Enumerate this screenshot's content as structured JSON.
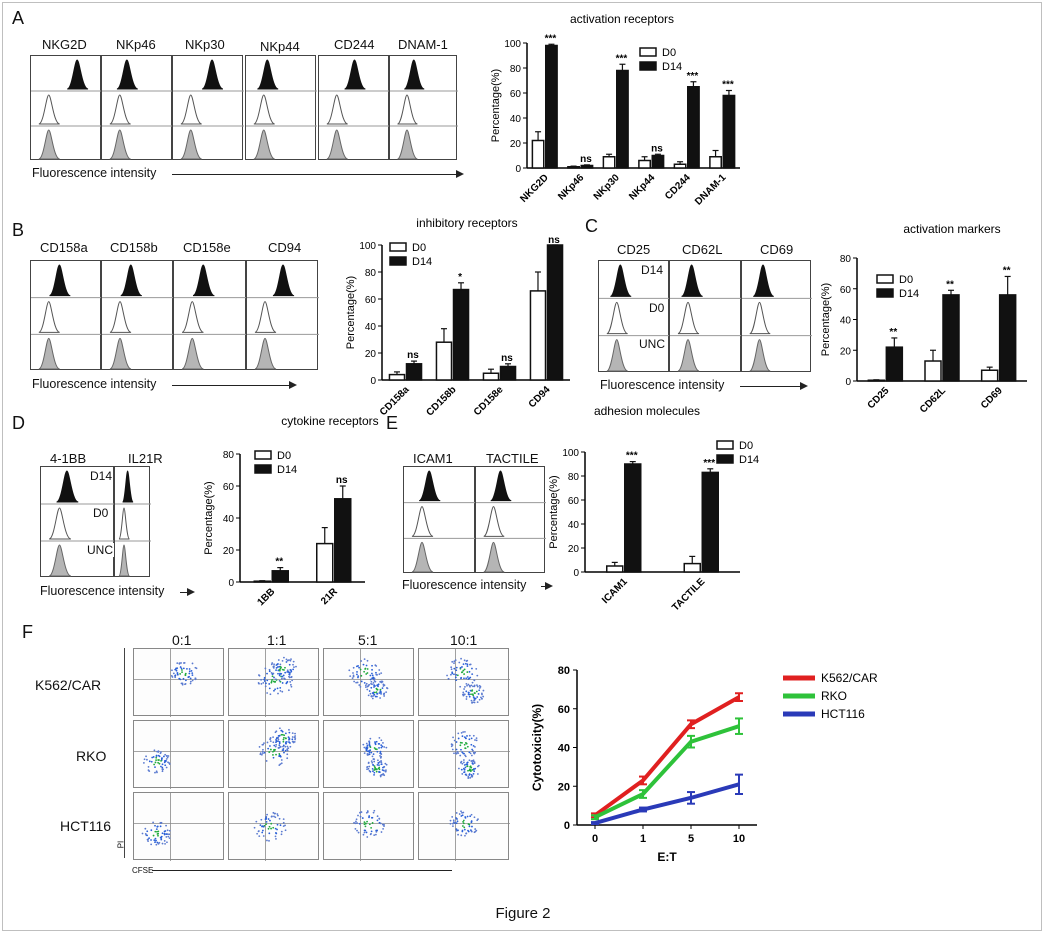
{
  "figure_caption": "Figure 2",
  "legend_d0": "D0",
  "legend_d14": "D14",
  "fluor_label": "Fluorescence intensity",
  "row_labels": {
    "top": "D14",
    "mid": "D0",
    "bot": "UNC"
  },
  "panels": {
    "A": {
      "letter": "A",
      "hist_labels": [
        "NKG2D",
        "NKp46",
        "NKp30",
        "NKp44",
        "CD244",
        "DNAM-1"
      ]
    },
    "B": {
      "letter": "B",
      "hist_labels": [
        "CD158a",
        "CD158b",
        "CD158e",
        "CD94"
      ]
    },
    "C": {
      "letter": "C",
      "hist_labels": [
        "CD25",
        "CD62L",
        "CD69"
      ]
    },
    "D": {
      "letter": "D",
      "hist_labels": [
        "4-1BB",
        "IL21R"
      ]
    },
    "E": {
      "letter": "E",
      "hist_labels": [
        "ICAM1",
        "TACTILE"
      ]
    },
    "F": {
      "letter": "F",
      "ratios": [
        "0:1",
        "1:1",
        "5:1",
        "10:1"
      ],
      "targets": [
        "K562/CAR",
        "RKO",
        "HCT116"
      ],
      "y_axis": "PI",
      "x_axis": "CFSE"
    }
  },
  "chart_data": [
    {
      "id": "A",
      "type": "bar",
      "title": "activation receptors",
      "ylabel": "Percentage(%)",
      "ylim": [
        0,
        100
      ],
      "yticks": [
        0,
        20,
        40,
        60,
        80,
        100
      ],
      "categories": [
        "NKG2D",
        "NKp46",
        "NKp30",
        "NKp44",
        "CD244",
        "DNAM-1"
      ],
      "series": [
        {
          "name": "D0",
          "values": [
            22,
            1,
            9,
            6,
            3,
            9
          ],
          "errors": [
            7,
            0.5,
            2,
            3,
            2,
            5
          ]
        },
        {
          "name": "D14",
          "values": [
            98,
            2,
            78,
            10,
            65,
            58
          ],
          "errors": [
            1,
            0.5,
            5,
            1,
            4,
            4
          ]
        }
      ],
      "annotations": [
        "***",
        "ns",
        "***",
        "ns",
        "***",
        "***"
      ]
    },
    {
      "id": "B",
      "type": "bar",
      "title": "inhibitory receptors",
      "ylabel": "Percentage(%)",
      "ylim": [
        0,
        100
      ],
      "yticks": [
        0,
        20,
        40,
        60,
        80,
        100
      ],
      "categories": [
        "CD158a",
        "CD158b",
        "CD158e",
        "CD94"
      ],
      "series": [
        {
          "name": "D0",
          "values": [
            4,
            28,
            5,
            66
          ],
          "errors": [
            2,
            10,
            3,
            14
          ]
        },
        {
          "name": "D14",
          "values": [
            12,
            67,
            10,
            100
          ],
          "errors": [
            2,
            5,
            2,
            0
          ]
        }
      ],
      "annotations": [
        "ns",
        "*",
        "ns",
        "ns"
      ]
    },
    {
      "id": "C",
      "type": "bar",
      "title": "activation markers",
      "ylabel": "Percentage(%)",
      "ylim": [
        0,
        80
      ],
      "yticks": [
        0,
        20,
        40,
        60,
        80
      ],
      "categories": [
        "CD25",
        "CD62L",
        "CD69"
      ],
      "series": [
        {
          "name": "D0",
          "values": [
            0.5,
            13,
            7
          ],
          "errors": [
            0.3,
            7,
            2
          ]
        },
        {
          "name": "D14",
          "values": [
            22,
            56,
            56
          ],
          "errors": [
            6,
            3,
            12
          ]
        }
      ],
      "annotations": [
        "**",
        "**",
        "**"
      ]
    },
    {
      "id": "D",
      "type": "bar",
      "title": "cytokine receptors",
      "ylabel": "Percentage(%)",
      "ylim": [
        0,
        80
      ],
      "yticks": [
        0,
        20,
        40,
        60,
        80
      ],
      "categories": [
        "4-1BB",
        "IL21R"
      ],
      "category_display": [
        "1BB",
        "21R"
      ],
      "series": [
        {
          "name": "D0",
          "values": [
            0.5,
            24
          ],
          "errors": [
            0.3,
            10
          ]
        },
        {
          "name": "D14",
          "values": [
            7,
            52
          ],
          "errors": [
            2,
            8
          ]
        }
      ],
      "annotations": [
        "**",
        "ns"
      ]
    },
    {
      "id": "E",
      "type": "bar",
      "title": "adhesion molecules",
      "ylabel": "Percentage(%)",
      "ylim": [
        0,
        100
      ],
      "yticks": [
        0,
        20,
        40,
        60,
        80,
        100
      ],
      "categories": [
        "ICAM1",
        "TACTILE"
      ],
      "series": [
        {
          "name": "D0",
          "values": [
            5,
            7
          ],
          "errors": [
            3,
            6
          ]
        },
        {
          "name": "D14",
          "values": [
            90,
            83
          ],
          "errors": [
            2,
            3
          ]
        }
      ],
      "annotations": [
        "***",
        "***"
      ]
    },
    {
      "id": "F",
      "type": "line",
      "xlabel": "E:T",
      "ylabel": "Cytotoxicity(%)",
      "x": [
        0,
        1,
        5,
        10
      ],
      "ylim": [
        0,
        80
      ],
      "yticks": [
        0,
        20,
        40,
        60,
        80
      ],
      "series": [
        {
          "name": "K562/CAR",
          "color": "#e02020",
          "values": [
            5,
            23,
            52,
            66
          ],
          "errors": [
            1,
            2,
            2,
            2
          ]
        },
        {
          "name": "RKO",
          "color": "#2ec23a",
          "values": [
            4,
            16,
            43,
            51
          ],
          "errors": [
            1,
            2,
            3,
            4
          ]
        },
        {
          "name": "HCT116",
          "color": "#2a3ab8",
          "values": [
            1,
            8,
            14,
            21
          ],
          "errors": [
            0.5,
            1,
            3,
            5
          ]
        }
      ]
    }
  ]
}
